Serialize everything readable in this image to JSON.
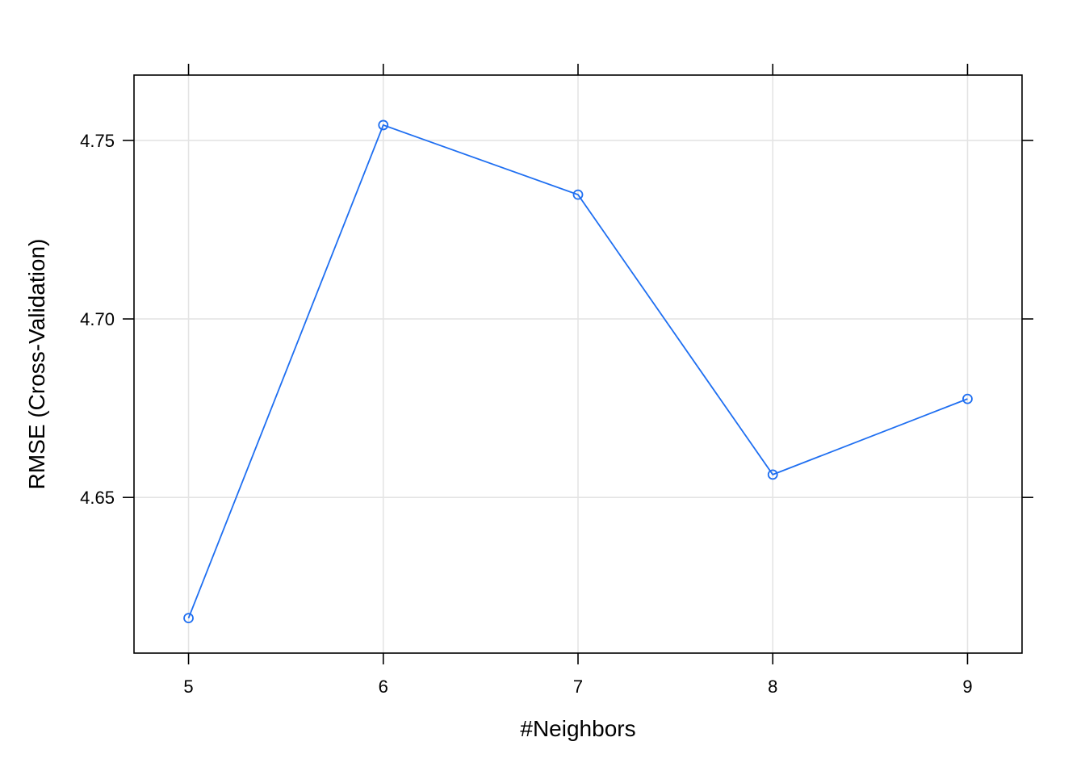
{
  "chart_data": {
    "type": "line",
    "title": "",
    "xlabel": "#Neighbors",
    "ylabel": "RMSE (Cross-Validation)",
    "x": [
      5,
      6,
      7,
      8,
      9
    ],
    "series": [
      {
        "values": [
          4.6162,
          4.7543,
          4.7348,
          4.6564,
          4.6776
        ],
        "color": "#1f6ff1",
        "marker": "open-circle"
      }
    ],
    "xlim": [
      4.72,
      9.28
    ],
    "ylim": [
      4.6064,
      4.7683
    ],
    "x_ticks": [
      5,
      6,
      7,
      8,
      9
    ],
    "x_tick_labels": [
      "5",
      "6",
      "7",
      "8",
      "9"
    ],
    "y_ticks": [
      4.65,
      4.7,
      4.75
    ],
    "y_tick_labels": [
      "4.65",
      "4.70",
      "4.75"
    ],
    "grid": true,
    "grid_color": "#e4e4e4",
    "frame_color": "#000000",
    "legend": "none"
  }
}
